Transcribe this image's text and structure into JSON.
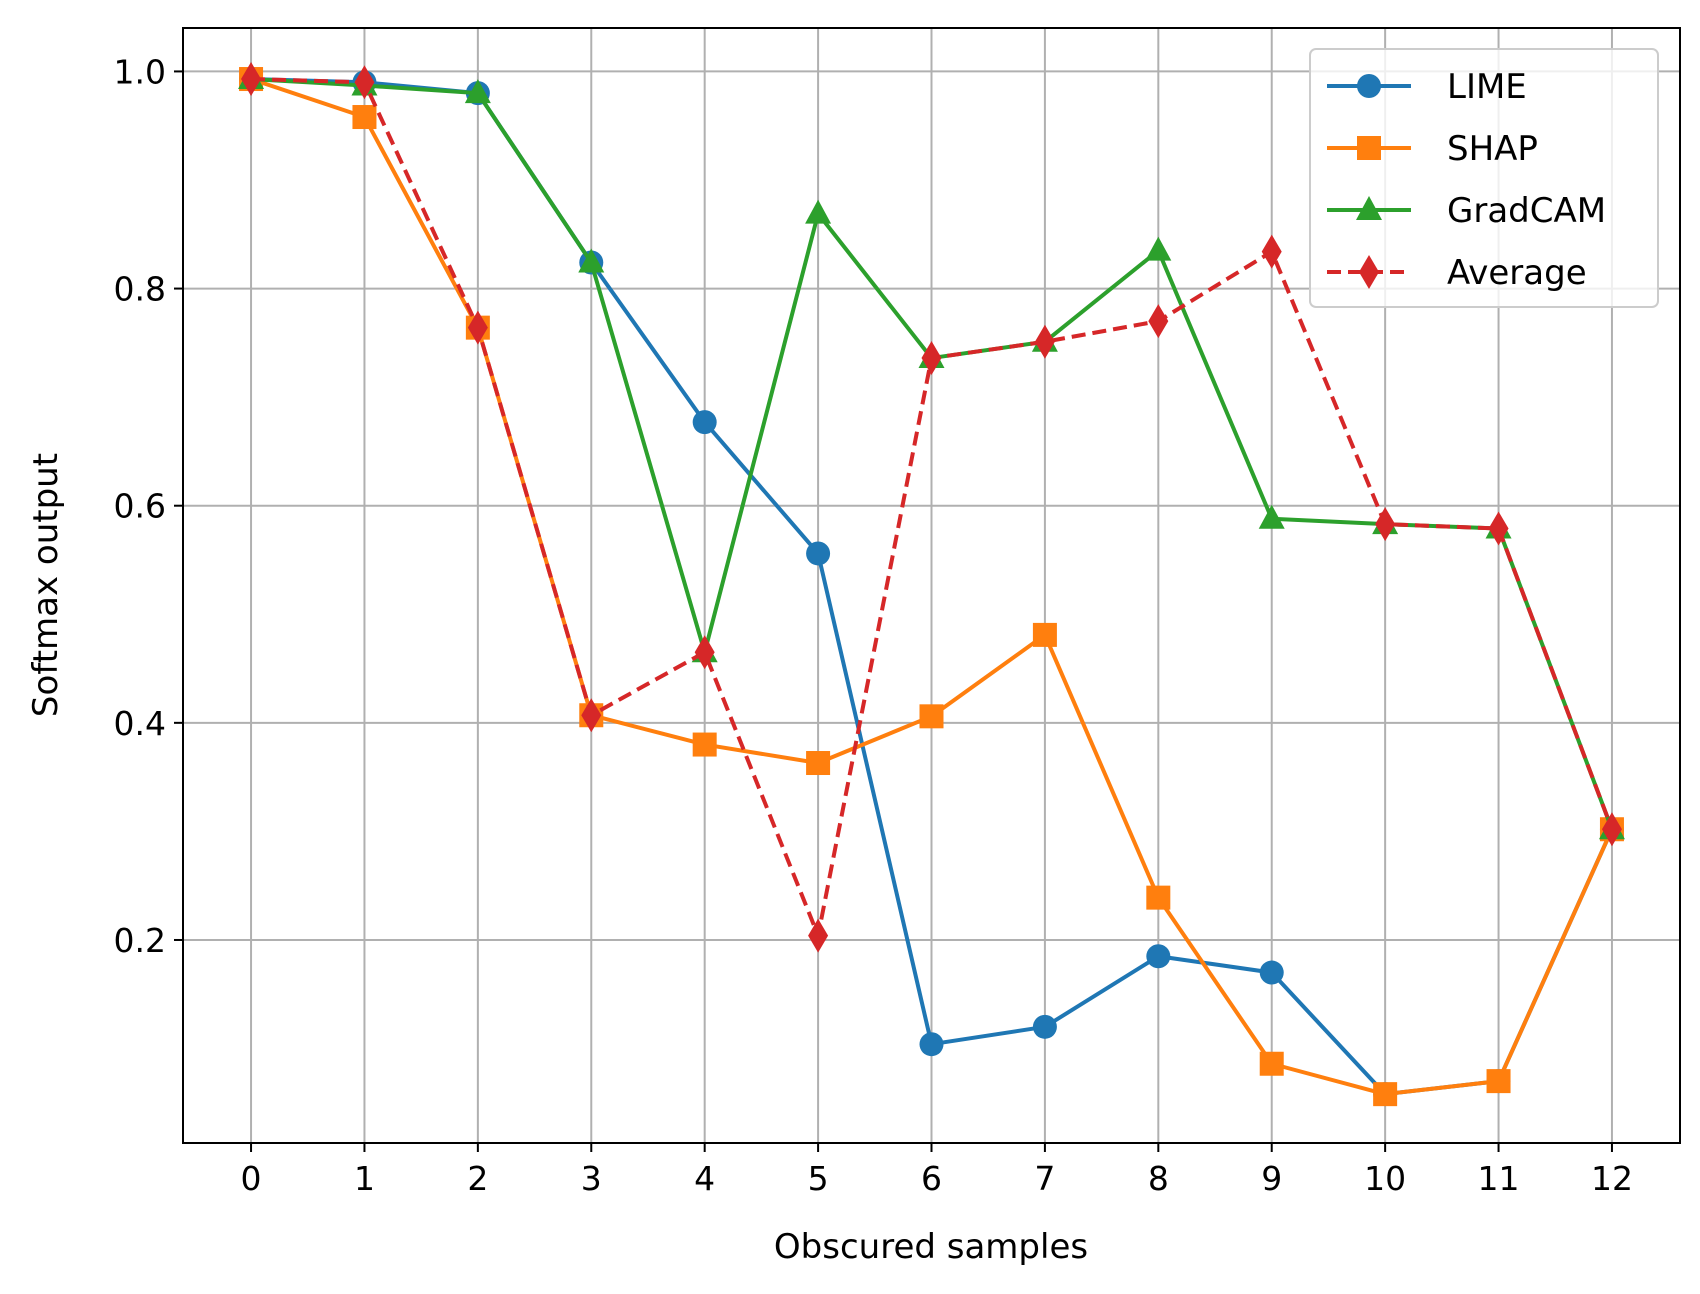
{
  "chart_data": {
    "type": "line",
    "title": "",
    "xlabel": "Obscured samples",
    "ylabel": "Softmax output",
    "x": [
      0,
      1,
      2,
      3,
      4,
      5,
      6,
      7,
      8,
      9,
      10,
      11,
      12
    ],
    "x_tick_labels": [
      "0",
      "1",
      "2",
      "3",
      "4",
      "5",
      "6",
      "7",
      "8",
      "9",
      "10",
      "11",
      "12"
    ],
    "y_ticks": [
      0.2,
      0.4,
      0.6,
      0.8,
      1.0
    ],
    "y_tick_labels": [
      "0.2",
      "0.4",
      "0.6",
      "0.8",
      "1.0"
    ],
    "xlim": [
      -0.6,
      12.6
    ],
    "ylim": [
      0.013,
      1.04
    ],
    "grid": true,
    "legend_position": "top-right",
    "series": [
      {
        "name": "LIME",
        "color": "#1f77b4",
        "marker": "circle",
        "linestyle": "solid",
        "values": [
          0.993,
          0.99,
          0.98,
          0.824,
          0.677,
          0.556,
          0.104,
          0.12,
          0.185,
          0.17,
          0.058,
          0.07,
          0.302
        ]
      },
      {
        "name": "SHAP",
        "color": "#ff7f0e",
        "marker": "square",
        "linestyle": "solid",
        "values": [
          0.993,
          0.958,
          0.764,
          0.407,
          0.38,
          0.363,
          0.406,
          0.481,
          0.239,
          0.086,
          0.058,
          0.07,
          0.302
        ]
      },
      {
        "name": "GradCAM",
        "color": "#2ca02c",
        "marker": "triangle",
        "linestyle": "solid",
        "values": [
          0.993,
          0.987,
          0.98,
          0.824,
          0.465,
          0.869,
          0.736,
          0.751,
          0.835,
          0.588,
          0.583,
          0.579,
          0.302
        ]
      },
      {
        "name": "Average",
        "color": "#d62728",
        "marker": "diamond",
        "linestyle": "dashed",
        "values": [
          0.993,
          0.99,
          0.764,
          0.407,
          0.465,
          0.204,
          0.736,
          0.751,
          0.77,
          0.834,
          0.583,
          0.579,
          0.302
        ]
      }
    ]
  }
}
